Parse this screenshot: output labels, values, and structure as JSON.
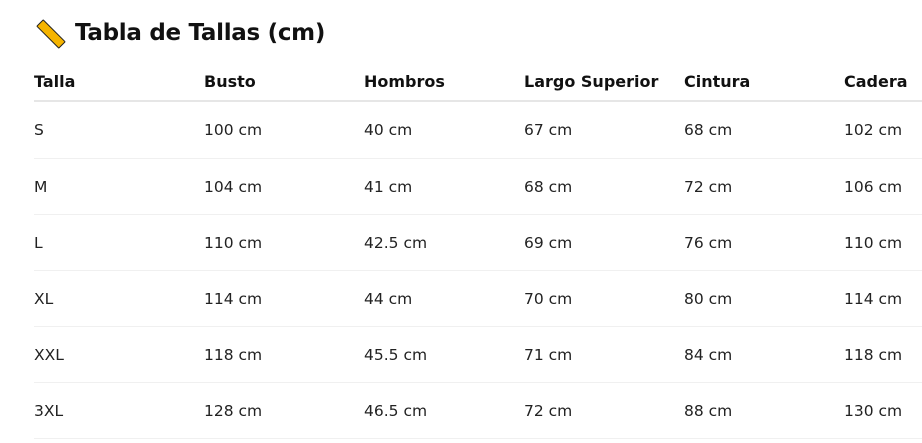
{
  "title": {
    "icon": "ruler-icon",
    "text": "Tabla de Tallas (cm)"
  },
  "colors": {
    "icon": "#f5b400",
    "border": "#e6e6e6"
  },
  "table": {
    "headers": [
      "Talla",
      "Busto",
      "Hombros",
      "Largo Superior",
      "Cintura",
      "Cadera"
    ],
    "rows": [
      [
        "S",
        "100 cm",
        "40 cm",
        "67 cm",
        "68 cm",
        "102 cm"
      ],
      [
        "M",
        "104 cm",
        "41 cm",
        "68 cm",
        "72 cm",
        "106 cm"
      ],
      [
        "L",
        "110 cm",
        "42.5 cm",
        "69 cm",
        "76 cm",
        "110 cm"
      ],
      [
        "XL",
        "114 cm",
        "44 cm",
        "70 cm",
        "80 cm",
        "114 cm"
      ],
      [
        "XXL",
        "118 cm",
        "45.5 cm",
        "71 cm",
        "84 cm",
        "118 cm"
      ],
      [
        "3XL",
        "128 cm",
        "46.5 cm",
        "72 cm",
        "88 cm",
        "130 cm"
      ]
    ]
  }
}
